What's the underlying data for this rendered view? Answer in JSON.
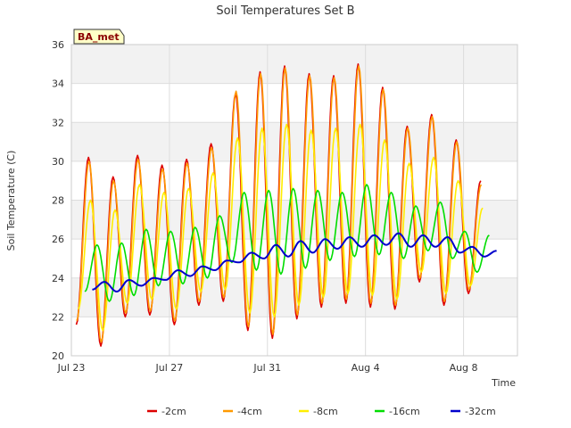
{
  "chart_data": {
    "type": "line",
    "title": "Soil Temperatures Set B",
    "xlabel": "Time",
    "ylabel": "Soil Temperature (C)",
    "station_tag": "BA_met",
    "x_range_days": [
      0,
      18.2
    ],
    "ylim": [
      20,
      36
    ],
    "x_ticks": [
      {
        "day": 0,
        "label": "Jul 23"
      },
      {
        "day": 4,
        "label": "Jul 27"
      },
      {
        "day": 8,
        "label": "Jul 31"
      },
      {
        "day": 12,
        "label": "Aug 4"
      },
      {
        "day": 16,
        "label": "Aug 8"
      }
    ],
    "y_ticks": [
      20,
      22,
      24,
      26,
      28,
      30,
      32,
      34,
      36
    ],
    "grid": true,
    "legend_position": "bottom-center",
    "series": [
      {
        "name": "-2cm",
        "color": "#dd0000",
        "daily_max": [
          30.2,
          29.2,
          30.3,
          29.8,
          30.1,
          30.9,
          33.5,
          34.6,
          34.9,
          34.5,
          34.4,
          35.0,
          33.8,
          31.8,
          32.4,
          31.1,
          29.0
        ],
        "daily_min": [
          21.6,
          20.5,
          22.0,
          22.1,
          21.6,
          22.6,
          22.8,
          21.3,
          20.9,
          21.9,
          22.5,
          22.7,
          22.5,
          22.4,
          23.8,
          22.6,
          23.2
        ],
        "day_offset": 0.7,
        "line_width": 1.6
      },
      {
        "name": "-4cm",
        "color": "#ff9900",
        "daily_max": [
          30.0,
          29.0,
          30.1,
          29.6,
          29.9,
          30.7,
          33.6,
          34.5,
          34.8,
          34.4,
          34.3,
          34.9,
          33.7,
          31.7,
          32.3,
          31.0,
          28.8
        ],
        "daily_min": [
          21.8,
          20.7,
          22.2,
          22.3,
          21.8,
          22.8,
          23.0,
          21.5,
          21.1,
          22.1,
          22.7,
          22.9,
          22.7,
          22.6,
          24.0,
          22.8,
          23.4
        ],
        "day_offset": 0.72,
        "line_width": 1.6
      },
      {
        "name": "-8cm",
        "color": "#ffee00",
        "daily_max": [
          28.0,
          27.5,
          28.8,
          28.4,
          28.6,
          29.4,
          31.2,
          31.7,
          31.9,
          31.6,
          31.7,
          31.9,
          31.1,
          29.9,
          30.2,
          29.0,
          27.6
        ],
        "daily_min": [
          22.4,
          21.3,
          22.7,
          22.9,
          22.4,
          23.3,
          23.4,
          22.2,
          22.0,
          22.6,
          23.0,
          23.2,
          23.1,
          22.9,
          24.3,
          23.2,
          23.6
        ],
        "day_offset": 0.78,
        "line_width": 1.6
      },
      {
        "name": "-16cm",
        "color": "#00dd00",
        "daily_max": [
          25.7,
          25.8,
          26.5,
          26.4,
          26.6,
          27.2,
          28.4,
          28.5,
          28.6,
          28.5,
          28.4,
          28.8,
          28.4,
          27.7,
          27.9,
          26.4,
          26.2
        ],
        "daily_min": [
          23.3,
          22.8,
          23.1,
          23.6,
          23.7,
          24.0,
          24.8,
          24.4,
          24.2,
          24.5,
          24.9,
          25.1,
          25.2,
          25.0,
          25.4,
          25.0,
          24.3
        ],
        "day_offset": 1.05,
        "line_width": 1.6
      },
      {
        "name": "-32cm",
        "color": "#0000cc",
        "daily_max": [
          23.8,
          23.9,
          24.0,
          24.4,
          24.6,
          24.9,
          25.3,
          25.7,
          25.9,
          26.0,
          26.1,
          26.2,
          26.3,
          26.2,
          26.1,
          25.6,
          25.4
        ],
        "daily_min": [
          23.4,
          23.3,
          23.6,
          23.9,
          24.1,
          24.4,
          24.8,
          25.0,
          25.1,
          25.3,
          25.5,
          25.6,
          25.7,
          25.6,
          25.6,
          25.3,
          25.1
        ],
        "day_offset": 1.35,
        "line_width": 2.0
      }
    ]
  }
}
